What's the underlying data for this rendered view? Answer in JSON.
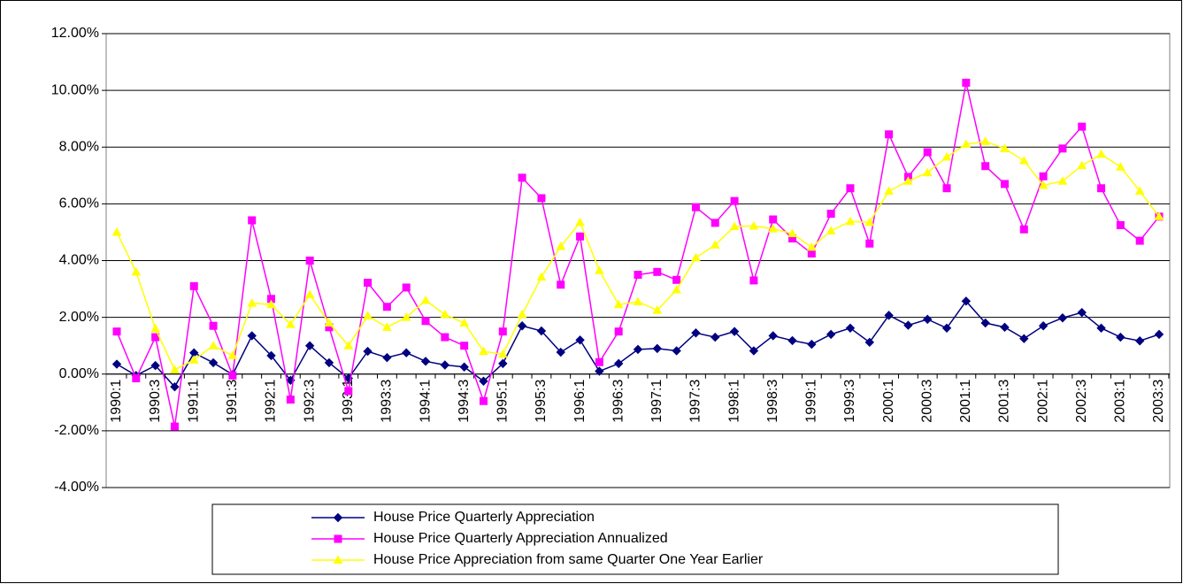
{
  "chart_data": {
    "type": "line",
    "categories": [
      "1990:1",
      null,
      "1990:3",
      null,
      "1991:1",
      null,
      "1991:3",
      null,
      "1992:1",
      null,
      "1992:3",
      null,
      "1993:1",
      null,
      "1993:3",
      null,
      "1994:1",
      null,
      "1994:3",
      null,
      "1995:1",
      null,
      "1995:3",
      null,
      "1996:1",
      null,
      "1996:3",
      null,
      "1997:1",
      null,
      "1997:3",
      null,
      "1998:1",
      null,
      "1998:3",
      null,
      "1999:1",
      null,
      "1999:3",
      null,
      "2000:1",
      null,
      "2000:3",
      null,
      "2001:1",
      null,
      "2001:3",
      null,
      "2002:1",
      null,
      "2002:3",
      null,
      "2003:1",
      null,
      "2003:3"
    ],
    "series": [
      {
        "name": "House Price Quarterly Appreciation",
        "color": "#000080",
        "marker": "diamond",
        "values": [
          0.35,
          -0.05,
          0.3,
          -0.45,
          0.75,
          0.4,
          -0.02,
          1.35,
          0.65,
          -0.22,
          1.0,
          0.4,
          -0.15,
          0.8,
          0.58,
          0.75,
          0.45,
          0.32,
          0.25,
          -0.25,
          0.37,
          1.7,
          1.52,
          0.77,
          1.2,
          0.1,
          0.37,
          0.87,
          0.9,
          0.82,
          1.45,
          1.3,
          1.5,
          0.82,
          1.35,
          1.18,
          1.05,
          1.4,
          1.62,
          1.12,
          2.07,
          1.72,
          1.93,
          1.62,
          2.57,
          1.8,
          1.65,
          1.25,
          1.7,
          1.98,
          2.17,
          1.62,
          1.3,
          1.17,
          1.4
        ]
      },
      {
        "name": "House Price Quarterly Appreciation Annualized",
        "color": "#ff00ff",
        "marker": "square",
        "values": [
          1.5,
          -0.15,
          1.3,
          -1.85,
          3.1,
          1.7,
          -0.05,
          5.42,
          2.65,
          -0.9,
          4.0,
          1.65,
          -0.6,
          3.22,
          2.37,
          3.05,
          1.87,
          1.3,
          1.0,
          -0.95,
          1.5,
          6.92,
          6.2,
          3.15,
          4.85,
          0.42,
          1.5,
          3.5,
          3.6,
          3.32,
          5.88,
          5.33,
          6.1,
          3.3,
          5.45,
          4.78,
          4.25,
          5.65,
          6.55,
          4.6,
          8.45,
          6.95,
          7.82,
          6.55,
          10.27,
          7.33,
          6.7,
          5.1,
          6.97,
          7.95,
          8.72,
          6.55,
          5.25,
          4.7,
          5.55
        ]
      },
      {
        "name": "House Price Appreciation from same Quarter One Year Earlier",
        "color": "#ffff00",
        "marker": "triangle",
        "values": [
          5.0,
          3.6,
          1.6,
          0.15,
          0.5,
          1.0,
          0.65,
          2.5,
          2.45,
          1.75,
          2.8,
          1.8,
          1.0,
          2.05,
          1.65,
          2.0,
          2.6,
          2.1,
          1.8,
          0.8,
          0.7,
          2.1,
          3.42,
          4.5,
          5.35,
          3.65,
          2.45,
          2.55,
          2.25,
          2.97,
          4.1,
          4.55,
          5.2,
          5.22,
          5.12,
          4.95,
          4.47,
          5.05,
          5.38,
          5.35,
          6.45,
          6.8,
          7.1,
          7.65,
          8.1,
          8.2,
          7.95,
          7.52,
          6.65,
          6.8,
          7.35,
          7.75,
          7.3,
          6.45,
          5.55
        ]
      }
    ],
    "ylim": [
      -4,
      12
    ],
    "yticks": [
      {
        "value": -4,
        "label": "-4.00%"
      },
      {
        "value": -2,
        "label": "-2.00%"
      },
      {
        "value": 0,
        "label": "0.00%"
      },
      {
        "value": 2,
        "label": "2.00%"
      },
      {
        "value": 4,
        "label": "4.00%"
      },
      {
        "value": 6,
        "label": "6.00%"
      },
      {
        "value": 8,
        "label": "8.00%"
      },
      {
        "value": 10,
        "label": "10.00%"
      },
      {
        "value": 12,
        "label": "12.00%"
      }
    ],
    "grid": true,
    "legend": "bottom"
  }
}
